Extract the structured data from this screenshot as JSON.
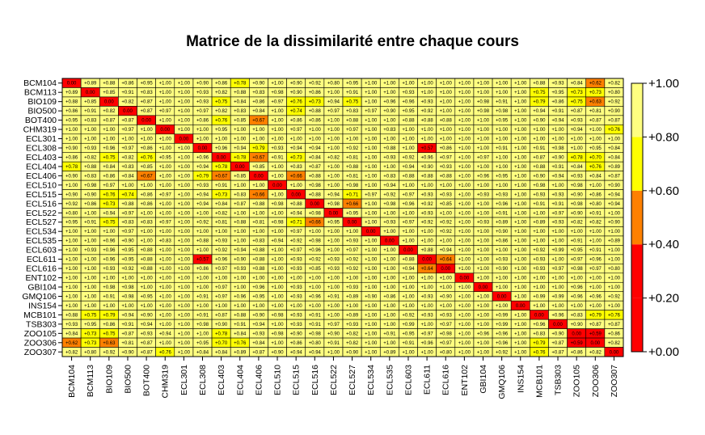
{
  "chart_data": {
    "type": "heatmap",
    "title": "Matrice de la dissimilarité entre chaque cours",
    "xlabel": "",
    "ylabel": "",
    "labels": [
      "BCM104",
      "BCM113",
      "BIO109",
      "BIO500",
      "BOT400",
      "CHM319",
      "ECL301",
      "ECL308",
      "ECL403",
      "ECL404",
      "ECL406",
      "ECL510",
      "ECL515",
      "ECL516",
      "ECL522",
      "ECL527",
      "ECL534",
      "ECL535",
      "ECL603",
      "ECL611",
      "ECL616",
      "ENT102",
      "GBI104",
      "GMQ106",
      "INS154",
      "MCB101",
      "TSB303",
      "ZOO105",
      "ZOO306",
      "ZOO307"
    ],
    "values": [
      [
        0.0,
        0.89,
        0.88,
        0.86,
        0.95,
        1.0,
        1.0,
        0.9,
        0.86,
        0.78,
        0.9,
        1.0,
        0.9,
        0.92,
        0.8,
        0.95,
        1.0,
        1.0,
        1.0,
        1.0,
        1.0,
        1.0,
        1.0,
        1.0,
        1.0,
        0.88,
        0.93,
        0.84,
        0.62,
        0.82
      ],
      [
        0.89,
        0.0,
        0.85,
        0.91,
        0.83,
        1.0,
        1.0,
        0.93,
        0.82,
        0.88,
        0.83,
        0.98,
        0.9,
        0.86,
        1.0,
        0.91,
        1.0,
        1.0,
        0.93,
        1.0,
        1.0,
        1.0,
        1.0,
        1.0,
        1.0,
        0.75,
        0.95,
        0.73,
        0.73,
        0.8
      ],
      [
        0.88,
        0.85,
        0.0,
        0.82,
        0.87,
        1.0,
        1.0,
        0.93,
        0.75,
        0.84,
        0.86,
        0.97,
        0.76,
        0.73,
        0.94,
        0.75,
        1.0,
        0.96,
        0.96,
        0.93,
        1.0,
        1.0,
        0.98,
        0.91,
        1.0,
        0.79,
        0.86,
        0.75,
        0.63,
        0.92
      ],
      [
        0.86,
        0.91,
        0.82,
        0.0,
        0.87,
        0.97,
        1.0,
        0.97,
        0.82,
        0.83,
        0.84,
        1.0,
        0.74,
        0.88,
        0.97,
        0.83,
        0.97,
        0.9,
        0.95,
        0.92,
        1.0,
        1.0,
        0.98,
        0.98,
        1.0,
        0.94,
        0.91,
        0.87,
        0.81,
        0.9
      ],
      [
        0.95,
        0.83,
        0.87,
        0.87,
        0.0,
        1.0,
        1.0,
        0.86,
        0.76,
        0.85,
        0.67,
        1.0,
        0.86,
        0.86,
        1.0,
        0.88,
        1.0,
        1.0,
        0.88,
        0.88,
        0.88,
        1.0,
        1.0,
        0.95,
        1.0,
        0.9,
        0.94,
        0.93,
        0.87,
        0.87
      ],
      [
        1.0,
        1.0,
        1.0,
        0.97,
        1.0,
        0.0,
        1.0,
        1.0,
        0.95,
        1.0,
        1.0,
        1.0,
        0.97,
        1.0,
        1.0,
        0.97,
        1.0,
        0.83,
        1.0,
        1.0,
        1.0,
        1.0,
        1.0,
        1.0,
        1.0,
        1.0,
        1.0,
        0.94,
        1.0,
        0.76
      ],
      [
        1.0,
        1.0,
        1.0,
        1.0,
        1.0,
        1.0,
        0.0,
        1.0,
        1.0,
        1.0,
        1.0,
        1.0,
        1.0,
        1.0,
        1.0,
        1.0,
        1.0,
        1.0,
        1.0,
        1.0,
        1.0,
        1.0,
        1.0,
        1.0,
        1.0,
        1.0,
        1.0,
        1.0,
        1.0,
        1.0
      ],
      [
        0.9,
        0.93,
        0.96,
        0.97,
        0.86,
        1.0,
        1.0,
        0.0,
        0.96,
        0.94,
        0.79,
        0.93,
        0.94,
        0.94,
        1.0,
        0.92,
        1.0,
        0.88,
        1.0,
        0.57,
        0.86,
        1.0,
        1.0,
        0.91,
        1.0,
        0.91,
        0.98,
        1.0,
        0.95,
        0.84
      ],
      [
        0.86,
        0.82,
        0.75,
        0.82,
        0.76,
        0.95,
        1.0,
        0.96,
        0.0,
        0.78,
        0.67,
        0.91,
        0.73,
        0.84,
        0.82,
        0.81,
        1.0,
        0.93,
        0.92,
        0.96,
        0.97,
        1.0,
        0.97,
        1.0,
        1.0,
        0.87,
        0.9,
        0.78,
        0.7,
        0.84
      ],
      [
        0.78,
        0.88,
        0.84,
        0.83,
        0.85,
        1.0,
        1.0,
        0.94,
        0.78,
        0.0,
        0.85,
        1.0,
        0.83,
        0.87,
        1.0,
        0.88,
        1.0,
        1.0,
        0.94,
        0.9,
        0.93,
        1.0,
        1.0,
        1.0,
        1.0,
        0.88,
        0.91,
        0.84,
        0.76,
        0.89
      ],
      [
        0.9,
        0.83,
        0.86,
        0.84,
        0.67,
        1.0,
        1.0,
        0.79,
        0.67,
        0.85,
        0.0,
        1.0,
        0.66,
        0.88,
        1.0,
        0.81,
        1.0,
        0.83,
        0.88,
        0.88,
        0.88,
        1.0,
        0.96,
        0.95,
        1.0,
        0.9,
        0.94,
        0.93,
        0.84,
        0.87
      ],
      [
        1.0,
        0.98,
        0.97,
        1.0,
        1.0,
        1.0,
        1.0,
        0.93,
        0.91,
        1.0,
        1.0,
        0.0,
        1.0,
        0.98,
        1.0,
        0.98,
        1.0,
        0.94,
        1.0,
        1.0,
        1.0,
        1.0,
        1.0,
        1.0,
        1.0,
        0.98,
        1.0,
        0.98,
        1.0,
        0.9
      ],
      [
        0.9,
        0.9,
        0.76,
        0.74,
        0.86,
        0.97,
        1.0,
        0.94,
        0.73,
        0.83,
        0.66,
        1.0,
        0.0,
        0.88,
        0.94,
        0.71,
        0.97,
        0.92,
        0.97,
        0.93,
        0.93,
        1.0,
        0.93,
        0.93,
        1.0,
        0.93,
        0.93,
        0.9,
        0.86,
        0.94
      ],
      [
        0.92,
        0.86,
        0.73,
        0.88,
        0.86,
        1.0,
        1.0,
        0.94,
        0.84,
        0.87,
        0.88,
        0.98,
        0.88,
        0.0,
        0.98,
        0.66,
        1.0,
        0.98,
        0.96,
        0.92,
        0.85,
        1.0,
        1.0,
        0.96,
        1.0,
        0.91,
        0.91,
        0.98,
        0.8,
        0.94
      ],
      [
        0.8,
        1.0,
        0.94,
        0.97,
        1.0,
        1.0,
        1.0,
        1.0,
        0.82,
        1.0,
        1.0,
        1.0,
        0.94,
        0.98,
        0.0,
        0.95,
        1.0,
        1.0,
        1.0,
        0.93,
        1.0,
        1.0,
        1.0,
        0.91,
        1.0,
        1.0,
        0.97,
        0.9,
        0.91,
        1.0
      ],
      [
        0.95,
        0.91,
        0.75,
        0.83,
        0.83,
        0.97,
        1.0,
        0.92,
        0.81,
        0.88,
        0.81,
        0.98,
        0.71,
        0.66,
        0.95,
        0.0,
        1.0,
        0.93,
        0.97,
        0.92,
        0.92,
        1.0,
        0.93,
        0.89,
        1.0,
        0.89,
        0.93,
        0.82,
        0.82,
        0.9
      ],
      [
        1.0,
        1.0,
        1.0,
        0.97,
        1.0,
        1.0,
        1.0,
        1.0,
        1.0,
        1.0,
        1.0,
        1.0,
        0.97,
        1.0,
        1.0,
        1.0,
        0.0,
        1.0,
        1.0,
        1.0,
        0.92,
        1.0,
        1.0,
        0.9,
        1.0,
        1.0,
        1.0,
        1.0,
        1.0,
        1.0
      ],
      [
        1.0,
        1.0,
        0.96,
        0.9,
        1.0,
        0.83,
        1.0,
        0.88,
        0.93,
        1.0,
        0.83,
        0.94,
        0.92,
        0.98,
        1.0,
        0.93,
        1.0,
        0.0,
        1.0,
        1.0,
        1.0,
        1.0,
        1.0,
        0.86,
        1.0,
        1.0,
        1.0,
        0.91,
        1.0,
        0.89
      ],
      [
        1.0,
        0.93,
        0.96,
        0.95,
        0.88,
        1.0,
        1.0,
        1.0,
        0.92,
        0.94,
        0.88,
        1.0,
        0.97,
        0.96,
        1.0,
        0.97,
        1.0,
        1.0,
        0.0,
        0.88,
        0.94,
        1.0,
        1.0,
        1.0,
        1.0,
        0.92,
        0.99,
        0.95,
        0.91,
        1.0
      ],
      [
        1.0,
        1.0,
        0.96,
        0.95,
        0.88,
        1.0,
        1.0,
        0.57,
        0.96,
        0.9,
        0.88,
        1.0,
        0.93,
        0.92,
        0.93,
        0.92,
        1.0,
        1.0,
        0.88,
        0.0,
        0.64,
        1.0,
        1.0,
        0.93,
        1.0,
        0.93,
        1.0,
        0.97,
        0.96,
        1.0
      ],
      [
        1.0,
        1.0,
        0.93,
        0.92,
        0.88,
        1.0,
        1.0,
        0.86,
        0.97,
        0.93,
        0.88,
        1.0,
        0.93,
        0.85,
        0.93,
        0.92,
        1.0,
        1.0,
        0.94,
        0.64,
        0.0,
        1.0,
        1.0,
        0.9,
        1.0,
        0.93,
        0.97,
        0.98,
        0.97,
        0.8
      ],
      [
        1.0,
        1.0,
        1.0,
        1.0,
        1.0,
        1.0,
        1.0,
        1.0,
        1.0,
        1.0,
        1.0,
        1.0,
        1.0,
        1.0,
        1.0,
        1.0,
        1.0,
        1.0,
        1.0,
        1.0,
        1.0,
        0.0,
        1.0,
        1.0,
        1.0,
        1.0,
        1.0,
        1.0,
        1.0,
        1.0
      ],
      [
        1.0,
        1.0,
        0.98,
        0.98,
        1.0,
        1.0,
        1.0,
        1.0,
        0.97,
        1.0,
        0.96,
        1.0,
        0.93,
        1.0,
        1.0,
        0.93,
        1.0,
        1.0,
        1.0,
        1.0,
        1.0,
        1.0,
        0.0,
        1.0,
        1.0,
        1.0,
        1.0,
        0.96,
        1.0,
        1.0
      ],
      [
        1.0,
        1.0,
        0.91,
        0.98,
        0.95,
        1.0,
        1.0,
        0.91,
        0.97,
        0.96,
        0.95,
        1.0,
        0.93,
        0.96,
        0.91,
        0.89,
        0.9,
        0.86,
        1.0,
        0.93,
        0.9,
        1.0,
        1.0,
        0.0,
        1.0,
        0.99,
        0.99,
        0.96,
        0.96,
        0.92
      ],
      [
        1.0,
        1.0,
        1.0,
        1.0,
        1.0,
        1.0,
        1.0,
        1.0,
        1.0,
        1.0,
        1.0,
        1.0,
        1.0,
        1.0,
        1.0,
        1.0,
        1.0,
        1.0,
        1.0,
        1.0,
        1.0,
        1.0,
        1.0,
        1.0,
        0.0,
        1.0,
        1.0,
        1.0,
        1.0,
        1.0
      ],
      [
        0.88,
        0.75,
        0.79,
        0.94,
        0.9,
        1.0,
        1.0,
        0.91,
        0.87,
        0.88,
        0.9,
        0.98,
        0.93,
        0.91,
        1.0,
        0.89,
        1.0,
        1.0,
        0.92,
        0.93,
        0.93,
        1.0,
        1.0,
        0.99,
        1.0,
        0.0,
        0.96,
        0.83,
        0.79,
        0.76
      ],
      [
        0.93,
        0.95,
        0.86,
        0.91,
        0.94,
        1.0,
        1.0,
        0.98,
        0.9,
        0.91,
        0.94,
        1.0,
        0.93,
        0.91,
        0.97,
        0.93,
        1.0,
        1.0,
        0.99,
        1.0,
        0.97,
        1.0,
        1.0,
        0.99,
        1.0,
        0.96,
        0.0,
        0.9,
        0.87,
        0.87
      ],
      [
        0.84,
        0.73,
        0.75,
        0.87,
        0.93,
        0.94,
        1.0,
        1.0,
        0.78,
        0.84,
        0.93,
        0.98,
        0.9,
        0.98,
        0.9,
        0.82,
        1.0,
        0.91,
        0.95,
        0.97,
        0.98,
        1.0,
        0.96,
        0.96,
        1.0,
        0.83,
        0.9,
        0.0,
        0.59,
        0.86
      ],
      [
        0.62,
        0.73,
        0.63,
        0.81,
        0.87,
        1.0,
        1.0,
        0.95,
        0.7,
        0.76,
        0.84,
        1.0,
        0.86,
        0.8,
        0.91,
        0.82,
        1.0,
        1.0,
        0.91,
        0.96,
        0.97,
        1.0,
        1.0,
        0.96,
        1.0,
        0.79,
        0.87,
        0.59,
        0.0,
        0.82
      ],
      [
        0.82,
        0.8,
        0.92,
        0.9,
        0.87,
        0.76,
        1.0,
        0.84,
        0.84,
        0.89,
        0.87,
        0.9,
        0.94,
        0.94,
        1.0,
        0.9,
        1.0,
        0.89,
        1.0,
        1.0,
        0.8,
        1.0,
        1.0,
        0.92,
        1.0,
        0.76,
        0.87,
        0.86,
        0.82,
        0.0
      ]
    ],
    "value_labels": [
      "0.00",
      "+0.89",
      "+0.88",
      "+0.86",
      "+0.95",
      "+1.00"
    ],
    "color_scale": {
      "breaks": [
        0.0,
        0.2,
        0.4,
        0.6,
        0.8,
        1.0
      ],
      "colors": [
        "#FF0000",
        "#FF8000",
        "#FFFF00",
        "#FFFF80"
      ],
      "note_bins": [
        [
          0.0,
          0.6
        ],
        [
          0.6,
          0.7
        ],
        [
          0.7,
          0.8
        ],
        [
          0.8,
          1.0
        ]
      ]
    },
    "legend": {
      "placement": "right",
      "tick_labels": [
        "+0.00",
        "+0.20",
        "+0.40",
        "+0.60",
        "+0.80",
        "+1.00"
      ],
      "tick_values": [
        0.0,
        0.2,
        0.4,
        0.6,
        0.8,
        1.0
      ],
      "colors": [
        "#FF0000",
        "#FF8000",
        "#FFFF00",
        "#FFFF80"
      ]
    },
    "grid": true
  }
}
